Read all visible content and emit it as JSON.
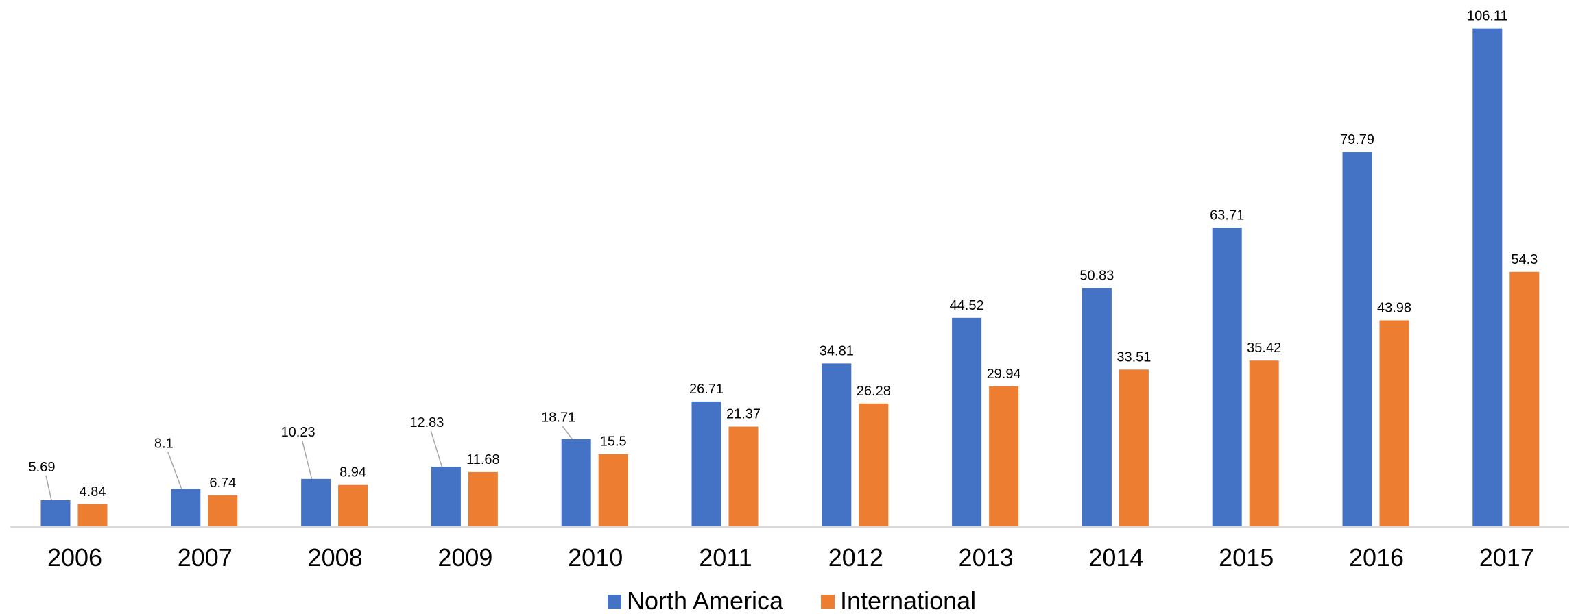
{
  "chart_data": {
    "type": "bar",
    "title": "",
    "xlabel": "",
    "ylabel": "",
    "categories": [
      "2006",
      "2007",
      "2008",
      "2009",
      "2010",
      "2011",
      "2012",
      "2013",
      "2014",
      "2015",
      "2016",
      "2017"
    ],
    "series": [
      {
        "name": "North America",
        "color": "#4472C4",
        "values": [
          5.69,
          8.1,
          10.23,
          12.83,
          18.71,
          26.71,
          34.81,
          44.52,
          50.83,
          63.71,
          79.79,
          106.11
        ],
        "labels": [
          "5.69",
          "8.1",
          "10.23",
          "12.83",
          "18.71",
          "26.71",
          "34.81",
          "44.52",
          "50.83",
          "63.71",
          "79.79",
          "106.11"
        ]
      },
      {
        "name": "International",
        "color": "#ED7D31",
        "values": [
          4.84,
          6.74,
          8.94,
          11.68,
          15.5,
          21.37,
          26.28,
          29.94,
          33.51,
          35.42,
          43.98,
          54.3
        ],
        "labels": [
          "4.84",
          "6.74",
          "8.94",
          "11.68",
          "15.5",
          "21.37",
          "26.28",
          "29.94",
          "33.51",
          "35.42",
          "43.98",
          "54.3"
        ]
      }
    ],
    "ylim": [
      0,
      110
    ],
    "grid": false,
    "legend": "bottom-center"
  }
}
